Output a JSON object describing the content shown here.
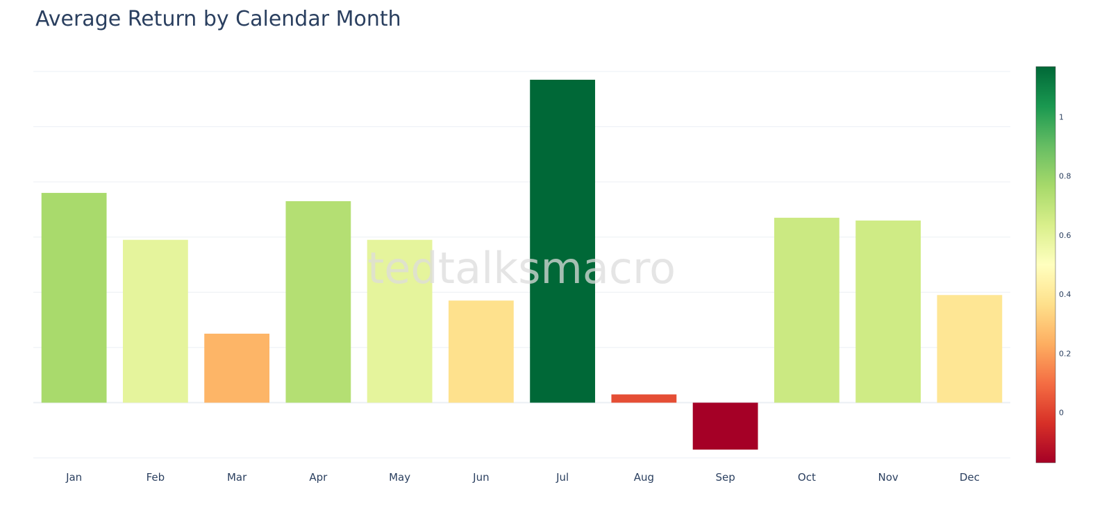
{
  "chart_data": {
    "type": "bar",
    "title": "Average Return by Calendar Month",
    "xlabel": "",
    "ylabel": "",
    "categories": [
      "Jan",
      "Feb",
      "Mar",
      "Apr",
      "May",
      "Jun",
      "Jul",
      "Aug",
      "Sep",
      "Oct",
      "Nov",
      "Dec"
    ],
    "values": [
      0.76,
      0.59,
      0.25,
      0.73,
      0.59,
      0.37,
      1.17,
      0.03,
      -0.17,
      0.67,
      0.66,
      0.39
    ],
    "ylim": [
      -0.2,
      1.2
    ],
    "grid": "horizontal",
    "y_tick_labels_visible": false,
    "colorscale": "RdYlGn",
    "colorbar": {
      "range": [
        -0.17,
        1.17
      ],
      "ticks": [
        0,
        0.2,
        0.4,
        0.6,
        0.8,
        1
      ],
      "tick_labels": [
        "0",
        "0.2",
        "0.4",
        "0.6",
        "0.8",
        "1"
      ]
    },
    "watermark": "tedtalksmacro"
  },
  "colors": {
    "title": "#2a3f5f",
    "gridline": "#ebeff4",
    "tick_text": "#2a3f5f",
    "watermark": "#dcdcdc"
  }
}
